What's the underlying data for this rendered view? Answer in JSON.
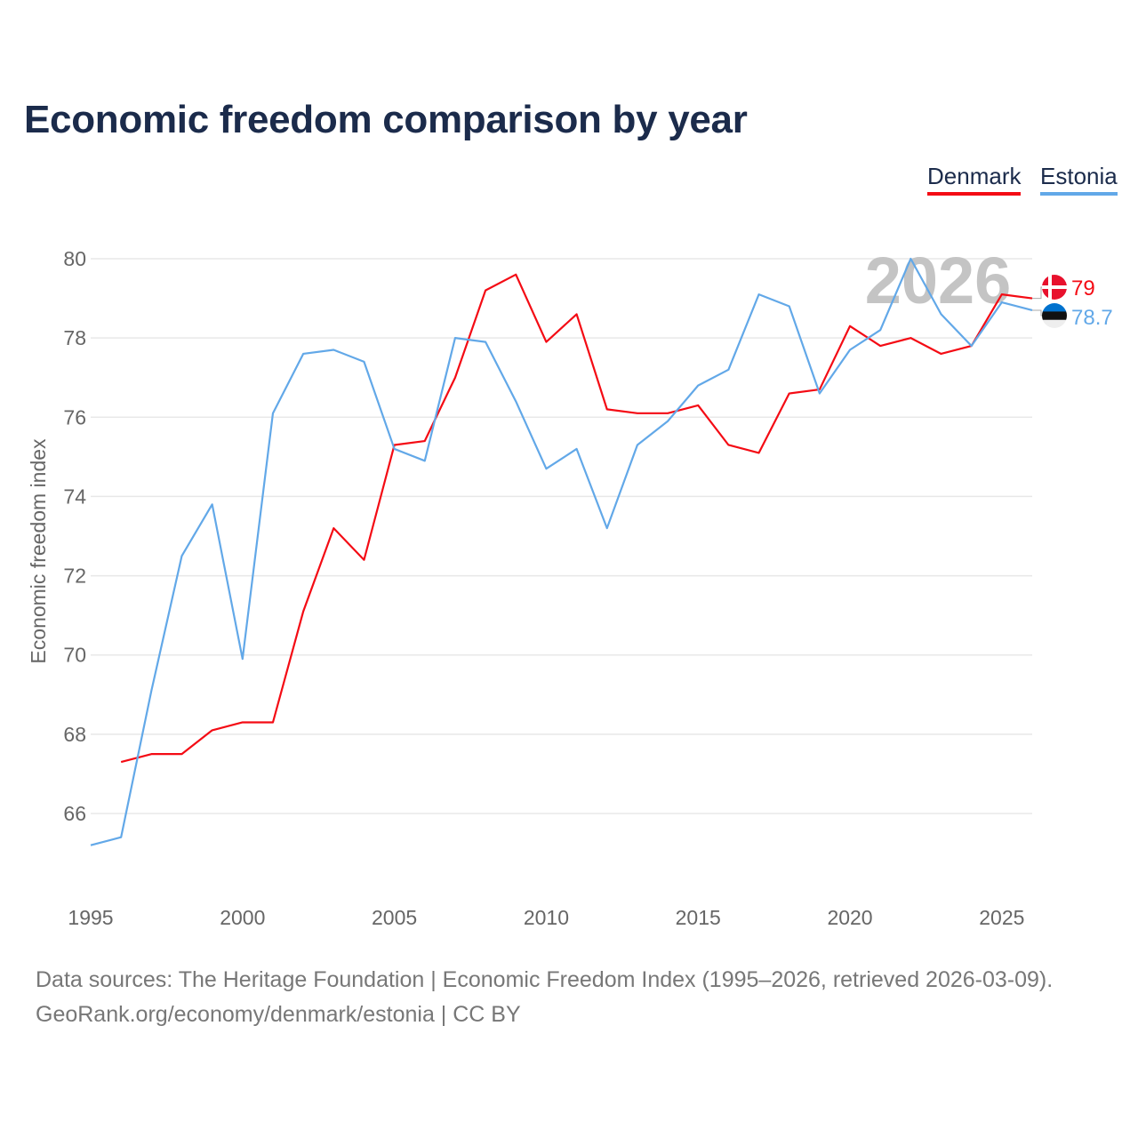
{
  "title": "Economic freedom comparison by year",
  "source_line1": "Data sources: The Heritage Foundation | Economic Freedom Index (1995–2026, retrieved 2026-03-09).",
  "source_line2": "GeoRank.org/economy/denmark/estonia | CC BY",
  "chart_data": {
    "type": "line",
    "title": "Economic freedom comparison by year",
    "xlabel": "",
    "ylabel": "Economic freedom index",
    "xlim": [
      1995,
      2026
    ],
    "ylim": [
      64.6,
      80.5
    ],
    "xticks": [
      1995,
      2000,
      2005,
      2010,
      2015,
      2020,
      2025
    ],
    "yticks": [
      66,
      68,
      70,
      72,
      74,
      76,
      78,
      80
    ],
    "grid": true,
    "legend_position": "top-right",
    "watermark_year": "2026",
    "series": [
      {
        "name": "Denmark",
        "color": "#f40b14",
        "end_label": "79",
        "x": [
          1996,
          1997,
          1998,
          1999,
          2000,
          2001,
          2002,
          2003,
          2004,
          2005,
          2006,
          2007,
          2008,
          2009,
          2010,
          2011,
          2012,
          2013,
          2014,
          2015,
          2016,
          2017,
          2018,
          2019,
          2020,
          2021,
          2022,
          2023,
          2024,
          2025,
          2026
        ],
        "values": [
          67.3,
          67.5,
          67.5,
          68.1,
          68.3,
          68.3,
          71.1,
          73.2,
          72.4,
          75.3,
          75.4,
          77.0,
          79.2,
          79.6,
          77.9,
          78.6,
          76.2,
          76.1,
          76.1,
          76.3,
          75.3,
          75.1,
          76.6,
          76.7,
          78.3,
          77.8,
          78.0,
          77.6,
          77.8,
          79.1,
          79.0
        ]
      },
      {
        "name": "Estonia",
        "color": "#62a8e8",
        "end_label": "78.7",
        "x": [
          1995,
          1996,
          1997,
          1998,
          1999,
          2000,
          2001,
          2002,
          2003,
          2004,
          2005,
          2006,
          2007,
          2008,
          2009,
          2010,
          2011,
          2012,
          2013,
          2014,
          2015,
          2016,
          2017,
          2018,
          2019,
          2020,
          2021,
          2022,
          2023,
          2024,
          2025,
          2026
        ],
        "values": [
          65.2,
          65.4,
          69.1,
          72.5,
          73.8,
          69.9,
          76.1,
          77.6,
          77.7,
          77.4,
          75.2,
          74.9,
          78.0,
          77.9,
          76.4,
          74.7,
          75.2,
          73.2,
          75.3,
          75.9,
          76.8,
          77.2,
          79.1,
          78.8,
          76.6,
          77.7,
          78.2,
          80.0,
          78.6,
          77.8,
          78.9,
          78.7
        ]
      }
    ]
  }
}
